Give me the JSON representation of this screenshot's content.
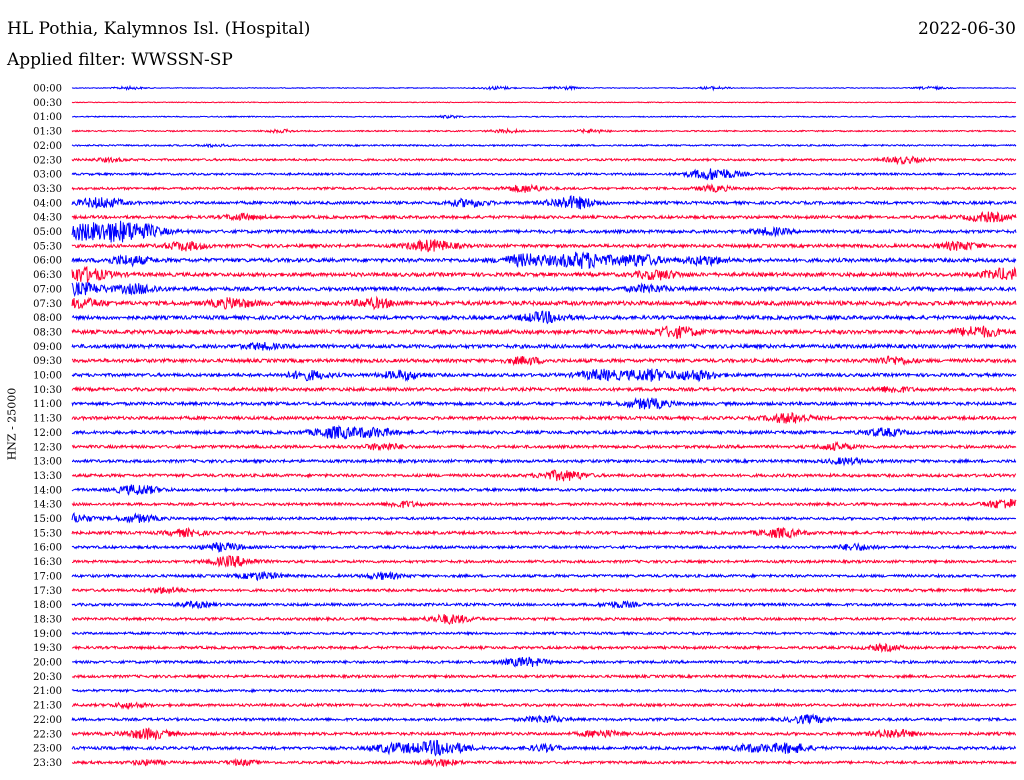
{
  "header": {
    "station": "HL Pothia, Kalymnos Isl. (Hospital)",
    "date": "2022-06-30",
    "filter": "Applied filter: WWSSN-SP"
  },
  "chart_data": {
    "type": "line",
    "chart_kind": "helicorder (seismogram drum plot)",
    "ylabel": "HNZ - 25000",
    "grid": false,
    "colors": {
      "even_rows": "#0000ff",
      "odd_rows": "#ff0033"
    },
    "rows": [
      {
        "label": "00:00",
        "base": 0.15,
        "bursts": [
          [
            0.06,
            0.5
          ],
          [
            0.45,
            0.6
          ],
          [
            0.52,
            0.6
          ],
          [
            0.68,
            0.5
          ],
          [
            0.91,
            0.5
          ]
        ]
      },
      {
        "label": "00:30",
        "base": 0.15,
        "bursts": []
      },
      {
        "label": "01:00",
        "base": 0.2,
        "bursts": [
          [
            0.4,
            0.4
          ]
        ]
      },
      {
        "label": "01:30",
        "base": 0.25,
        "bursts": [
          [
            0.22,
            0.5
          ],
          [
            0.46,
            0.6
          ],
          [
            0.55,
            0.6
          ]
        ]
      },
      {
        "label": "02:00",
        "base": 0.3,
        "bursts": [
          [
            0.15,
            0.4
          ]
        ]
      },
      {
        "label": "02:30",
        "base": 0.4,
        "bursts": [
          [
            0.04,
            0.6
          ],
          [
            0.88,
            1.2
          ]
        ]
      },
      {
        "label": "03:00",
        "base": 0.4,
        "bursts": [
          [
            0.68,
            2.2
          ]
        ]
      },
      {
        "label": "03:30",
        "base": 0.45,
        "bursts": [
          [
            0.48,
            1.3
          ],
          [
            0.68,
            1.0
          ]
        ]
      },
      {
        "label": "04:00",
        "base": 0.55,
        "bursts": [
          [
            0.03,
            1.8
          ],
          [
            0.42,
            1.3
          ],
          [
            0.53,
            2.2
          ]
        ]
      },
      {
        "label": "04:30",
        "base": 0.55,
        "bursts": [
          [
            0.18,
            1.0
          ],
          [
            0.97,
            1.6
          ]
        ]
      },
      {
        "label": "05:00",
        "base": 0.6,
        "bursts": [
          [
            0.0,
            2.6
          ],
          [
            0.04,
            2.6
          ],
          [
            0.07,
            2.4
          ],
          [
            0.74,
            1.2
          ]
        ]
      },
      {
        "label": "05:30",
        "base": 0.6,
        "bursts": [
          [
            0.12,
            1.5
          ],
          [
            0.38,
            2.0
          ],
          [
            0.94,
            1.4
          ]
        ]
      },
      {
        "label": "06:00",
        "base": 0.7,
        "bursts": [
          [
            0.06,
            1.6
          ],
          [
            0.48,
            2.0
          ],
          [
            0.54,
            2.8
          ],
          [
            0.6,
            2.0
          ],
          [
            0.67,
            1.5
          ]
        ]
      },
      {
        "label": "06:30",
        "base": 0.7,
        "bursts": [
          [
            0.01,
            2.6
          ],
          [
            0.62,
            1.6
          ],
          [
            0.99,
            2.0
          ]
        ]
      },
      {
        "label": "07:00",
        "base": 0.7,
        "bursts": [
          [
            0.01,
            2.0
          ],
          [
            0.07,
            1.6
          ],
          [
            0.61,
            1.3
          ]
        ]
      },
      {
        "label": "07:30",
        "base": 0.8,
        "bursts": [
          [
            0.01,
            1.5
          ],
          [
            0.17,
            1.6
          ],
          [
            0.32,
            1.5
          ]
        ]
      },
      {
        "label": "08:00",
        "base": 0.7,
        "bursts": [
          [
            0.5,
            1.8
          ]
        ]
      },
      {
        "label": "08:30",
        "base": 0.75,
        "bursts": [
          [
            0.64,
            1.8
          ],
          [
            0.96,
            1.8
          ]
        ]
      },
      {
        "label": "09:00",
        "base": 0.7,
        "bursts": [
          [
            0.2,
            1.0
          ]
        ]
      },
      {
        "label": "09:30",
        "base": 0.65,
        "bursts": [
          [
            0.48,
            1.2
          ],
          [
            0.87,
            1.3
          ]
        ]
      },
      {
        "label": "10:00",
        "base": 0.6,
        "bursts": [
          [
            0.25,
            1.6
          ],
          [
            0.35,
            1.5
          ],
          [
            0.56,
            1.8
          ],
          [
            0.61,
            2.0
          ],
          [
            0.66,
            1.8
          ]
        ]
      },
      {
        "label": "10:30",
        "base": 0.6,
        "bursts": [
          [
            0.87,
            1.0
          ]
        ]
      },
      {
        "label": "11:00",
        "base": 0.6,
        "bursts": [
          [
            0.61,
            1.8
          ]
        ]
      },
      {
        "label": "11:30",
        "base": 0.6,
        "bursts": [
          [
            0.76,
            1.7
          ]
        ]
      },
      {
        "label": "12:00",
        "base": 0.6,
        "bursts": [
          [
            0.28,
            2.0
          ],
          [
            0.32,
            1.5
          ],
          [
            0.86,
            1.3
          ]
        ]
      },
      {
        "label": "12:30",
        "base": 0.55,
        "bursts": [
          [
            0.33,
            1.2
          ],
          [
            0.81,
            1.1
          ]
        ]
      },
      {
        "label": "13:00",
        "base": 0.55,
        "bursts": [
          [
            0.82,
            1.0
          ]
        ]
      },
      {
        "label": "13:30",
        "base": 0.55,
        "bursts": [
          [
            0.52,
            1.8
          ]
        ]
      },
      {
        "label": "14:00",
        "base": 0.5,
        "bursts": [
          [
            0.07,
            1.7
          ]
        ]
      },
      {
        "label": "14:30",
        "base": 0.5,
        "bursts": [
          [
            0.35,
            1.0
          ],
          [
            0.99,
            1.7
          ]
        ]
      },
      {
        "label": "15:00",
        "base": 0.5,
        "bursts": [
          [
            0.0,
            1.6
          ],
          [
            0.07,
            1.3
          ]
        ]
      },
      {
        "label": "15:30",
        "base": 0.55,
        "bursts": [
          [
            0.12,
            1.2
          ],
          [
            0.75,
            1.6
          ]
        ]
      },
      {
        "label": "16:00",
        "base": 0.5,
        "bursts": [
          [
            0.16,
            1.4
          ],
          [
            0.83,
            1.1
          ]
        ]
      },
      {
        "label": "16:30",
        "base": 0.5,
        "bursts": [
          [
            0.17,
            1.8
          ]
        ]
      },
      {
        "label": "17:00",
        "base": 0.5,
        "bursts": [
          [
            0.2,
            1.3
          ],
          [
            0.33,
            1.1
          ]
        ]
      },
      {
        "label": "17:30",
        "base": 0.5,
        "bursts": [
          [
            0.1,
            1.0
          ]
        ]
      },
      {
        "label": "18:00",
        "base": 0.5,
        "bursts": [
          [
            0.13,
            0.9
          ],
          [
            0.58,
            1.0
          ]
        ]
      },
      {
        "label": "18:30",
        "base": 0.5,
        "bursts": [
          [
            0.4,
            1.6
          ]
        ]
      },
      {
        "label": "19:00",
        "base": 0.45,
        "bursts": []
      },
      {
        "label": "19:30",
        "base": 0.5,
        "bursts": [
          [
            0.86,
            1.0
          ]
        ]
      },
      {
        "label": "20:00",
        "base": 0.5,
        "bursts": [
          [
            0.48,
            1.6
          ]
        ]
      },
      {
        "label": "20:30",
        "base": 0.5,
        "bursts": []
      },
      {
        "label": "21:00",
        "base": 0.45,
        "bursts": []
      },
      {
        "label": "21:30",
        "base": 0.5,
        "bursts": [
          [
            0.06,
            0.8
          ]
        ]
      },
      {
        "label": "22:00",
        "base": 0.5,
        "bursts": [
          [
            0.5,
            1.2
          ],
          [
            0.78,
            1.4
          ]
        ]
      },
      {
        "label": "22:30",
        "base": 0.55,
        "bursts": [
          [
            0.08,
            1.8
          ],
          [
            0.56,
            1.2
          ],
          [
            0.87,
            1.5
          ]
        ]
      },
      {
        "label": "23:00",
        "base": 0.55,
        "bursts": [
          [
            0.34,
            1.6
          ],
          [
            0.39,
            2.6
          ],
          [
            0.5,
            1.0
          ],
          [
            0.72,
            1.2
          ],
          [
            0.76,
            1.7
          ]
        ]
      },
      {
        "label": "23:30",
        "base": 0.5,
        "bursts": [
          [
            0.08,
            0.8
          ],
          [
            0.18,
            0.8
          ],
          [
            0.39,
            1.2
          ]
        ]
      }
    ]
  }
}
